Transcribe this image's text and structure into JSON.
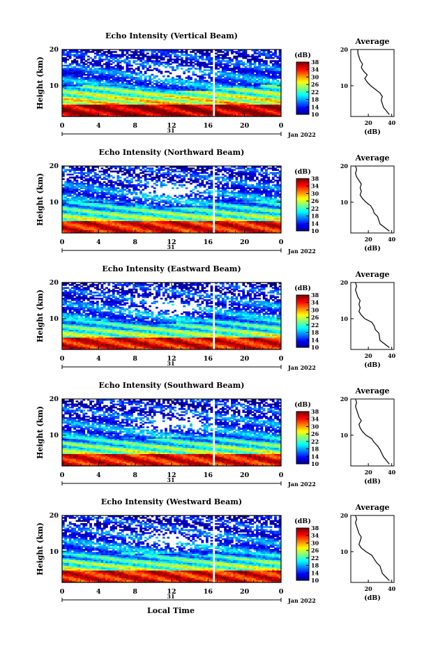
{
  "figure": {
    "xlabel": "Local Time",
    "date_label": "Jan 2022",
    "day_label": "31"
  },
  "chart_data": [
    {
      "type": "heatmap",
      "title": "Echo Intensity (Vertical Beam)",
      "ylabel": "Height (km)",
      "xlim": [
        0,
        24
      ],
      "ylim": [
        1.5,
        20
      ],
      "x_ticks": [
        "0",
        "4",
        "8",
        "12",
        "16",
        "20",
        "0"
      ],
      "y_ticks": [
        10,
        20
      ],
      "colorbar": {
        "label": "(dB)",
        "range": [
          10,
          38
        ],
        "ticks": [
          10,
          14,
          18,
          22,
          26,
          30,
          34,
          38
        ]
      },
      "profile": {
        "title": "Average",
        "xlabel": "(dB)",
        "x_ticks": [
          20,
          40
        ],
        "xlim": [
          5,
          42
        ],
        "ylim": [
          1.5,
          20
        ],
        "height_km": [
          2,
          4,
          6,
          7,
          8,
          9,
          10,
          11,
          12,
          13,
          14,
          15,
          16,
          17,
          18,
          19,
          20
        ],
        "db": [
          38,
          33,
          31,
          32,
          30,
          26,
          22,
          19,
          17,
          19,
          16,
          14,
          15,
          13,
          12,
          11,
          11
        ]
      }
    },
    {
      "type": "heatmap",
      "title": "Echo Intensity (Northward Beam)",
      "ylabel": "Height (km)",
      "xlim": [
        0,
        24
      ],
      "ylim": [
        1.5,
        20
      ],
      "x_ticks": [
        "0",
        "4",
        "8",
        "12",
        "16",
        "20",
        "0"
      ],
      "y_ticks": [
        10,
        20
      ],
      "colorbar": {
        "label": "(dB)",
        "range": [
          10,
          38
        ],
        "ticks": [
          10,
          14,
          18,
          22,
          26,
          30,
          34,
          38
        ]
      },
      "profile": {
        "title": "Average",
        "xlabel": "(dB)",
        "x_ticks": [
          20,
          40
        ],
        "xlim": [
          5,
          42
        ],
        "ylim": [
          1.5,
          20
        ],
        "height_km": [
          2,
          4,
          6,
          7,
          8,
          9,
          10,
          11,
          12,
          13,
          14,
          15,
          16,
          17,
          18,
          19,
          20
        ],
        "db": [
          38,
          30,
          28,
          25,
          24,
          22,
          18,
          15,
          13,
          14,
          13,
          14,
          12,
          10,
          9,
          10,
          9
        ]
      }
    },
    {
      "type": "heatmap",
      "title": "Echo Intensity (Eastward Beam)",
      "ylabel": "Height (km)",
      "xlim": [
        0,
        24
      ],
      "ylim": [
        1.5,
        20
      ],
      "x_ticks": [
        "0",
        "4",
        "8",
        "12",
        "16",
        "20",
        "0"
      ],
      "y_ticks": [
        10,
        20
      ],
      "colorbar": {
        "label": "(dB)",
        "range": [
          10,
          38
        ],
        "ticks": [
          10,
          14,
          18,
          22,
          26,
          30,
          34,
          38
        ]
      },
      "profile": {
        "title": "Average",
        "xlabel": "(dB)",
        "x_ticks": [
          20,
          40
        ],
        "xlim": [
          5,
          42
        ],
        "ylim": [
          1.5,
          20
        ],
        "height_km": [
          2,
          4,
          6,
          7,
          8,
          9,
          10,
          11,
          12,
          13,
          14,
          15,
          16,
          17,
          18,
          19,
          20
        ],
        "db": [
          38,
          30,
          29,
          26,
          25,
          23,
          17,
          14,
          12,
          13,
          12,
          13,
          11,
          10,
          9,
          10,
          9
        ]
      }
    },
    {
      "type": "heatmap",
      "title": "Echo Intensity (Southward Beam)",
      "ylabel": "Height (km)",
      "xlim": [
        0,
        24
      ],
      "ylim": [
        1.5,
        20
      ],
      "x_ticks": [
        "0",
        "4",
        "8",
        "12",
        "16",
        "20",
        "0"
      ],
      "y_ticks": [
        10,
        20
      ],
      "colorbar": {
        "label": "(dB)",
        "range": [
          10,
          38
        ],
        "ticks": [
          10,
          14,
          18,
          22,
          26,
          30,
          34,
          38
        ]
      },
      "profile": {
        "title": "Average",
        "xlabel": "(dB)",
        "x_ticks": [
          20,
          40
        ],
        "xlim": [
          5,
          42
        ],
        "ylim": [
          1.5,
          20
        ],
        "height_km": [
          2,
          4,
          6,
          7,
          8,
          9,
          10,
          11,
          12,
          13,
          14,
          15,
          16,
          17,
          18,
          19,
          20
        ],
        "db": [
          38,
          33,
          30,
          28,
          25,
          23,
          18,
          15,
          13,
          12,
          14,
          12,
          11,
          10,
          9,
          10,
          9
        ]
      }
    },
    {
      "type": "heatmap",
      "title": "Echo Intensity (Westward Beam)",
      "ylabel": "Height (km)",
      "xlim": [
        0,
        24
      ],
      "ylim": [
        1.5,
        20
      ],
      "x_ticks": [
        "0",
        "4",
        "8",
        "12",
        "16",
        "20",
        "0"
      ],
      "y_ticks": [
        10,
        20
      ],
      "colorbar": {
        "label": "(dB)",
        "range": [
          10,
          38
        ],
        "ticks": [
          10,
          14,
          18,
          22,
          26,
          30,
          34,
          38
        ]
      },
      "profile": {
        "title": "Average",
        "xlabel": "(dB)",
        "x_ticks": [
          20,
          40
        ],
        "xlim": [
          5,
          42
        ],
        "ylim": [
          1.5,
          20
        ],
        "height_km": [
          2,
          4,
          6,
          7,
          8,
          9,
          10,
          11,
          12,
          13,
          14,
          15,
          16,
          17,
          18,
          19,
          20
        ],
        "db": [
          38,
          32,
          30,
          27,
          25,
          23,
          18,
          14,
          12,
          13,
          14,
          12,
          11,
          10,
          9,
          10,
          9
        ]
      }
    }
  ]
}
